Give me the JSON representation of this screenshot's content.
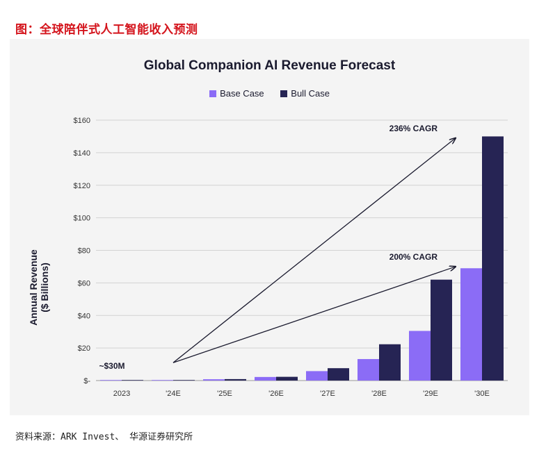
{
  "figure_caption": "图：全球陪伴式人工智能收入预测",
  "source_note": "资料来源：ARK Invest、 华源证券研究所",
  "chart_data": {
    "type": "bar",
    "title": "Global Companion AI Revenue Forecast",
    "ylabel_line1": "Annual Revenue",
    "ylabel_line2": "($ Billions)",
    "xlabel": "",
    "categories": [
      "2023",
      "'24E",
      "'25E",
      "'26E",
      "'27E",
      "'28E",
      "'29E",
      "'30E"
    ],
    "ylim": [
      0,
      160
    ],
    "yticks": [
      0,
      20,
      40,
      60,
      80,
      100,
      120,
      140,
      160
    ],
    "ytick_labels": [
      "$-",
      "$20",
      "$40",
      "$60",
      "$80",
      "$100",
      "$120",
      "$140",
      "$160"
    ],
    "grid": true,
    "legend_position": "top-center",
    "series": [
      {
        "name": "Base Case",
        "color": "#8b6cf6",
        "values": [
          0.03,
          0.15,
          0.8,
          2.2,
          5.8,
          13.2,
          30.5,
          69
        ]
      },
      {
        "name": "Bull Case",
        "color": "#262454",
        "values": [
          0.03,
          0.2,
          0.9,
          2.3,
          7.6,
          22.3,
          62,
          150
        ]
      }
    ],
    "annotations": [
      {
        "text": "~$30M",
        "category": "2023",
        "value": 3
      },
      {
        "text": "236% CAGR",
        "from_category": "'24E",
        "from_value": 11,
        "to_category": "'30E",
        "to_value": 149
      },
      {
        "text": "200% CAGR",
        "from_category": "'24E",
        "from_value": 11,
        "to_category": "'30E",
        "to_value": 70
      }
    ]
  }
}
